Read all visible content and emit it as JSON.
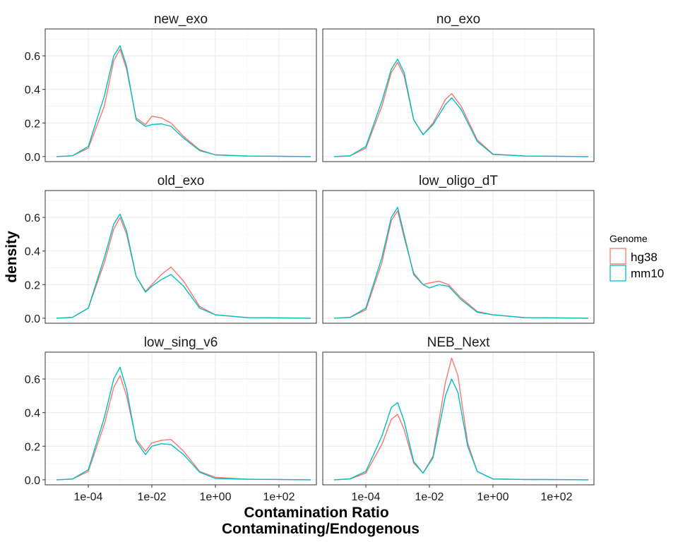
{
  "figure": {
    "xlabel_line1": "Contamination Ratio",
    "xlabel_line2": "Contaminating/Endogenous",
    "ylabel": "density"
  },
  "legend": {
    "title": "Genome",
    "placement": "right",
    "items": [
      {
        "label": "hg38",
        "color": "#F8766D"
      },
      {
        "label": "mm10",
        "color": "#00BFC4"
      }
    ]
  },
  "chart_data": {
    "type": "line",
    "subtype": "density",
    "x_scale": "log10",
    "xlim": [
      1e-05,
      1000
    ],
    "ylim": [
      -0.03,
      0.76
    ],
    "x_ticks": [
      "1e-04",
      "1e-02",
      "1e+00",
      "1e+02"
    ],
    "y_ticks": [
      "0.0",
      "0.2",
      "0.4",
      "0.6"
    ],
    "grid": true,
    "series_colors": {
      "hg38": "#F8766D",
      "mm10": "#00BFC4"
    },
    "facets": [
      {
        "title": "new_exo",
        "series": [
          {
            "name": "hg38",
            "points": [
              [
                1e-05,
                0.0
              ],
              [
                3.2e-05,
                0.005
              ],
              [
                0.0001,
                0.05
              ],
              [
                0.00032,
                0.3
              ],
              [
                0.00063,
                0.57
              ],
              [
                0.001,
                0.64
              ],
              [
                0.0016,
                0.52
              ],
              [
                0.0032,
                0.23
              ],
              [
                0.0063,
                0.19
              ],
              [
                0.01,
                0.24
              ],
              [
                0.02,
                0.23
              ],
              [
                0.04,
                0.2
              ],
              [
                0.1,
                0.12
              ],
              [
                0.32,
                0.04
              ],
              [
                1,
                0.01
              ],
              [
                10,
                0.003
              ],
              [
                100,
                0.002
              ],
              [
                1000,
                0.0
              ]
            ]
          },
          {
            "name": "mm10",
            "points": [
              [
                1e-05,
                0.0
              ],
              [
                3.2e-05,
                0.005
              ],
              [
                0.0001,
                0.06
              ],
              [
                0.00032,
                0.36
              ],
              [
                0.00063,
                0.6
              ],
              [
                0.001,
                0.66
              ],
              [
                0.0016,
                0.54
              ],
              [
                0.0032,
                0.22
              ],
              [
                0.0063,
                0.18
              ],
              [
                0.01,
                0.19
              ],
              [
                0.02,
                0.195
              ],
              [
                0.04,
                0.18
              ],
              [
                0.1,
                0.11
              ],
              [
                0.32,
                0.035
              ],
              [
                1,
                0.01
              ],
              [
                10,
                0.003
              ],
              [
                100,
                0.002
              ],
              [
                1000,
                0.0
              ]
            ]
          }
        ]
      },
      {
        "title": "no_exo",
        "series": [
          {
            "name": "hg38",
            "points": [
              [
                1e-05,
                0.0
              ],
              [
                3.2e-05,
                0.004
              ],
              [
                0.0001,
                0.05
              ],
              [
                0.00032,
                0.3
              ],
              [
                0.00063,
                0.5
              ],
              [
                0.001,
                0.56
              ],
              [
                0.0016,
                0.48
              ],
              [
                0.0032,
                0.22
              ],
              [
                0.0063,
                0.13
              ],
              [
                0.013,
                0.2
              ],
              [
                0.032,
                0.34
              ],
              [
                0.05,
                0.375
              ],
              [
                0.1,
                0.3
              ],
              [
                0.32,
                0.1
              ],
              [
                1,
                0.015
              ],
              [
                10,
                0.003
              ],
              [
                100,
                0.002
              ],
              [
                1000,
                0.0
              ]
            ]
          },
          {
            "name": "mm10",
            "points": [
              [
                1e-05,
                0.0
              ],
              [
                3.2e-05,
                0.005
              ],
              [
                0.0001,
                0.06
              ],
              [
                0.00032,
                0.33
              ],
              [
                0.00063,
                0.52
              ],
              [
                0.001,
                0.58
              ],
              [
                0.0016,
                0.5
              ],
              [
                0.0032,
                0.22
              ],
              [
                0.0063,
                0.13
              ],
              [
                0.013,
                0.19
              ],
              [
                0.032,
                0.31
              ],
              [
                0.05,
                0.35
              ],
              [
                0.1,
                0.28
              ],
              [
                0.32,
                0.09
              ],
              [
                1,
                0.013
              ],
              [
                10,
                0.003
              ],
              [
                100,
                0.002
              ],
              [
                1000,
                0.0
              ]
            ]
          }
        ]
      },
      {
        "title": "old_exo",
        "series": [
          {
            "name": "hg38",
            "points": [
              [
                1e-05,
                0.0
              ],
              [
                3.2e-05,
                0.005
              ],
              [
                0.0001,
                0.06
              ],
              [
                0.00032,
                0.33
              ],
              [
                0.00063,
                0.53
              ],
              [
                0.001,
                0.6
              ],
              [
                0.0016,
                0.5
              ],
              [
                0.0032,
                0.25
              ],
              [
                0.0063,
                0.16
              ],
              [
                0.01,
                0.2
              ],
              [
                0.02,
                0.26
              ],
              [
                0.04,
                0.305
              ],
              [
                0.1,
                0.22
              ],
              [
                0.32,
                0.07
              ],
              [
                1,
                0.02
              ],
              [
                10,
                0.003
              ],
              [
                100,
                0.002
              ],
              [
                1000,
                0.0
              ]
            ]
          },
          {
            "name": "mm10",
            "points": [
              [
                1e-05,
                0.0
              ],
              [
                3.2e-05,
                0.005
              ],
              [
                0.0001,
                0.06
              ],
              [
                0.00032,
                0.36
              ],
              [
                0.00063,
                0.56
              ],
              [
                0.001,
                0.62
              ],
              [
                0.0016,
                0.52
              ],
              [
                0.0032,
                0.25
              ],
              [
                0.0063,
                0.155
              ],
              [
                0.01,
                0.19
              ],
              [
                0.02,
                0.23
              ],
              [
                0.04,
                0.26
              ],
              [
                0.1,
                0.19
              ],
              [
                0.32,
                0.06
              ],
              [
                1,
                0.02
              ],
              [
                10,
                0.003
              ],
              [
                100,
                0.002
              ],
              [
                1000,
                0.0
              ]
            ]
          }
        ]
      },
      {
        "title": "low_oligo_dT",
        "series": [
          {
            "name": "hg38",
            "points": [
              [
                1e-05,
                0.0
              ],
              [
                3.2e-05,
                0.005
              ],
              [
                0.0001,
                0.05
              ],
              [
                0.00032,
                0.33
              ],
              [
                0.00063,
                0.58
              ],
              [
                0.001,
                0.64
              ],
              [
                0.0016,
                0.48
              ],
              [
                0.0032,
                0.27
              ],
              [
                0.0063,
                0.2
              ],
              [
                0.01,
                0.21
              ],
              [
                0.02,
                0.22
              ],
              [
                0.04,
                0.2
              ],
              [
                0.1,
                0.12
              ],
              [
                0.32,
                0.04
              ],
              [
                1,
                0.02
              ],
              [
                10,
                0.003
              ],
              [
                100,
                0.002
              ],
              [
                1000,
                0.0
              ]
            ]
          },
          {
            "name": "mm10",
            "points": [
              [
                1e-05,
                0.0
              ],
              [
                3.2e-05,
                0.005
              ],
              [
                0.0001,
                0.06
              ],
              [
                0.00032,
                0.36
              ],
              [
                0.00063,
                0.6
              ],
              [
                0.001,
                0.66
              ],
              [
                0.0016,
                0.5
              ],
              [
                0.0032,
                0.26
              ],
              [
                0.0063,
                0.2
              ],
              [
                0.01,
                0.18
              ],
              [
                0.02,
                0.2
              ],
              [
                0.04,
                0.19
              ],
              [
                0.1,
                0.11
              ],
              [
                0.32,
                0.035
              ],
              [
                1,
                0.02
              ],
              [
                10,
                0.003
              ],
              [
                100,
                0.002
              ],
              [
                1000,
                0.0
              ]
            ]
          }
        ]
      },
      {
        "title": "low_sing_v6",
        "series": [
          {
            "name": "hg38",
            "points": [
              [
                1e-05,
                0.0
              ],
              [
                3.2e-05,
                0.005
              ],
              [
                0.0001,
                0.05
              ],
              [
                0.00032,
                0.33
              ],
              [
                0.00063,
                0.55
              ],
              [
                0.001,
                0.62
              ],
              [
                0.0016,
                0.5
              ],
              [
                0.0032,
                0.24
              ],
              [
                0.0063,
                0.17
              ],
              [
                0.01,
                0.22
              ],
              [
                0.02,
                0.235
              ],
              [
                0.04,
                0.24
              ],
              [
                0.1,
                0.17
              ],
              [
                0.32,
                0.05
              ],
              [
                1,
                0.015
              ],
              [
                10,
                0.003
              ],
              [
                100,
                0.002
              ],
              [
                1000,
                0.0
              ]
            ]
          },
          {
            "name": "mm10",
            "points": [
              [
                1e-05,
                0.0
              ],
              [
                3.2e-05,
                0.005
              ],
              [
                0.0001,
                0.06
              ],
              [
                0.00032,
                0.37
              ],
              [
                0.00063,
                0.6
              ],
              [
                0.001,
                0.67
              ],
              [
                0.0016,
                0.54
              ],
              [
                0.0032,
                0.23
              ],
              [
                0.0063,
                0.15
              ],
              [
                0.01,
                0.2
              ],
              [
                0.02,
                0.215
              ],
              [
                0.04,
                0.21
              ],
              [
                0.1,
                0.15
              ],
              [
                0.32,
                0.045
              ],
              [
                1,
                0.008
              ],
              [
                10,
                0.003
              ],
              [
                100,
                0.002
              ],
              [
                1000,
                0.0
              ]
            ]
          }
        ]
      },
      {
        "title": "NEB_Next",
        "series": [
          {
            "name": "hg38",
            "points": [
              [
                1e-05,
                0.0
              ],
              [
                3.2e-05,
                0.005
              ],
              [
                0.0001,
                0.04
              ],
              [
                0.00032,
                0.21
              ],
              [
                0.00063,
                0.36
              ],
              [
                0.001,
                0.39
              ],
              [
                0.0016,
                0.3
              ],
              [
                0.0032,
                0.1
              ],
              [
                0.0063,
                0.04
              ],
              [
                0.013,
                0.14
              ],
              [
                0.032,
                0.58
              ],
              [
                0.05,
                0.725
              ],
              [
                0.079,
                0.62
              ],
              [
                0.16,
                0.22
              ],
              [
                0.32,
                0.05
              ],
              [
                1,
                0.005
              ],
              [
                10,
                0.002
              ],
              [
                100,
                0.001
              ],
              [
                1000,
                0.0
              ]
            ]
          },
          {
            "name": "mm10",
            "points": [
              [
                1e-05,
                0.0
              ],
              [
                3.2e-05,
                0.006
              ],
              [
                0.0001,
                0.05
              ],
              [
                0.00032,
                0.26
              ],
              [
                0.00063,
                0.43
              ],
              [
                0.001,
                0.46
              ],
              [
                0.0016,
                0.35
              ],
              [
                0.0032,
                0.11
              ],
              [
                0.0063,
                0.04
              ],
              [
                0.013,
                0.13
              ],
              [
                0.032,
                0.5
              ],
              [
                0.05,
                0.6
              ],
              [
                0.079,
                0.52
              ],
              [
                0.16,
                0.2
              ],
              [
                0.32,
                0.05
              ],
              [
                1,
                0.005
              ],
              [
                10,
                0.002
              ],
              [
                100,
                0.001
              ],
              [
                1000,
                0.0
              ]
            ]
          }
        ]
      }
    ]
  }
}
